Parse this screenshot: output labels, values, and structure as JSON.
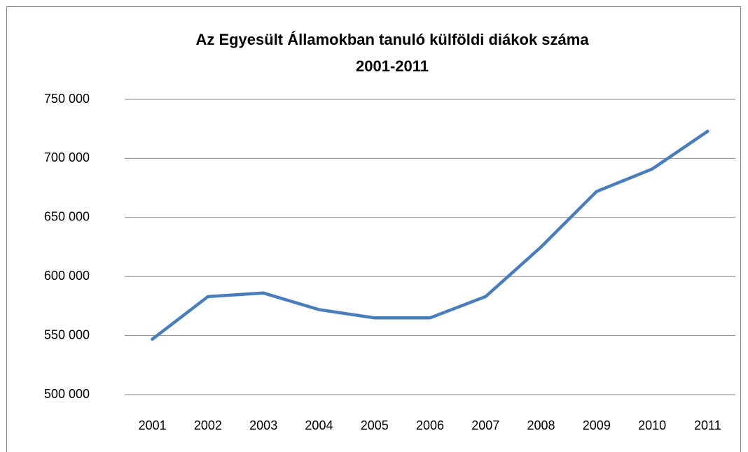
{
  "chart_data": {
    "type": "line",
    "title": [
      "Az Egyesült Államokban tanuló külföldi diákok száma",
      "2001-2011"
    ],
    "categories": [
      "2001",
      "2002",
      "2003",
      "2004",
      "2005",
      "2006",
      "2007",
      "2008",
      "2009",
      "2010",
      "2011"
    ],
    "series": [
      {
        "color": "#4a7ebb",
        "values": [
          547000,
          583000,
          586000,
          572000,
          565000,
          565000,
          583000,
          625000,
          672000,
          691000,
          723000
        ]
      }
    ],
    "ylim": [
      500000,
      750000
    ],
    "yticks": [
      {
        "value": 500000,
        "label": "500 000"
      },
      {
        "value": 550000,
        "label": "550 000"
      },
      {
        "value": 600000,
        "label": "600 000"
      },
      {
        "value": 650000,
        "label": "650 000"
      },
      {
        "value": 700000,
        "label": "700 000"
      },
      {
        "value": 750000,
        "label": "750 000"
      }
    ],
    "grid": true
  }
}
